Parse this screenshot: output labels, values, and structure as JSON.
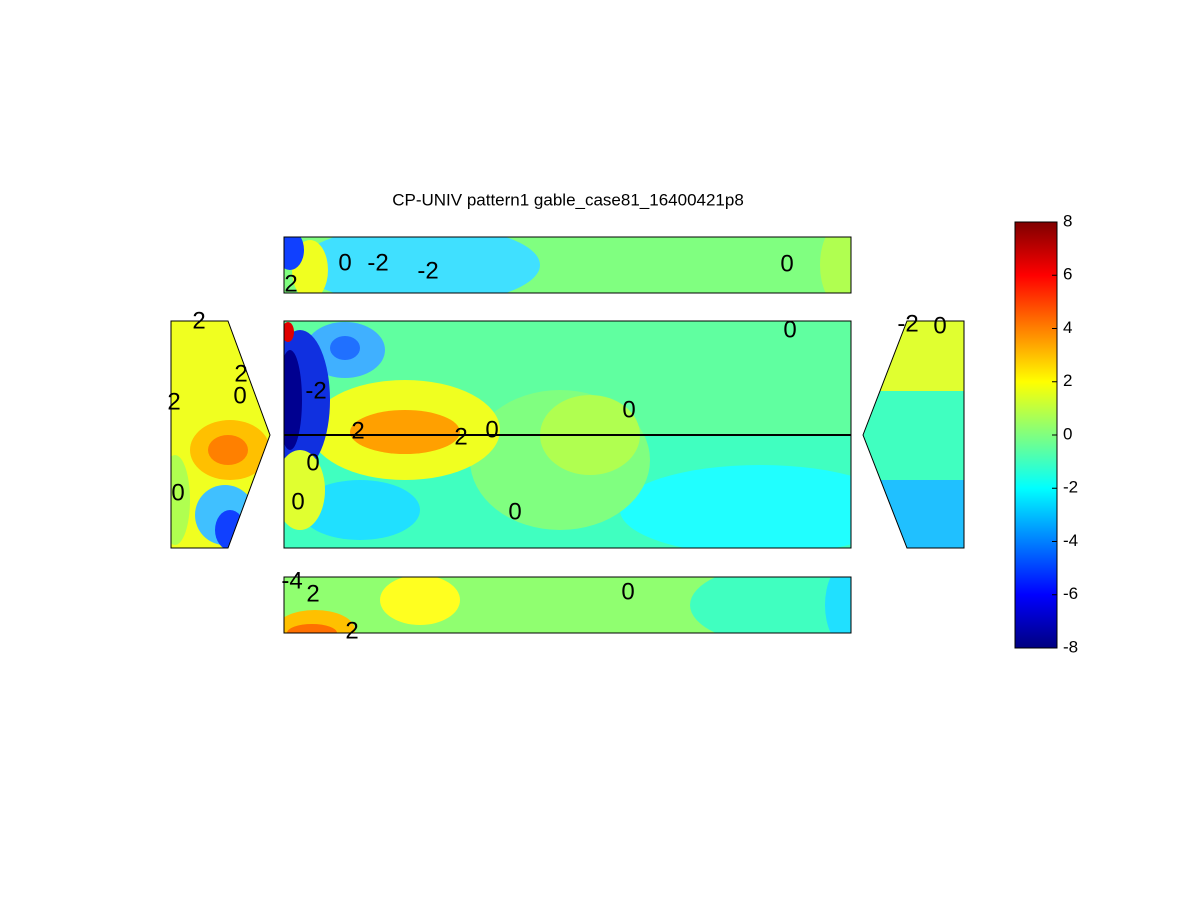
{
  "chart_data": {
    "type": "contour",
    "title": "CP-UNIV pattern1 gable_case81_16400421p8",
    "clim": [
      -8,
      8
    ],
    "cticks": [
      -8,
      -6,
      -4,
      -2,
      0,
      2,
      4,
      6,
      8
    ],
    "colormap": "jet",
    "contour_labels": [
      0,
      -2,
      -2,
      0,
      2,
      0,
      0,
      2,
      2,
      0,
      0,
      0,
      0,
      -2,
      2,
      2,
      2,
      0,
      0,
      -2,
      0,
      -4,
      2,
      0,
      2
    ]
  }
}
